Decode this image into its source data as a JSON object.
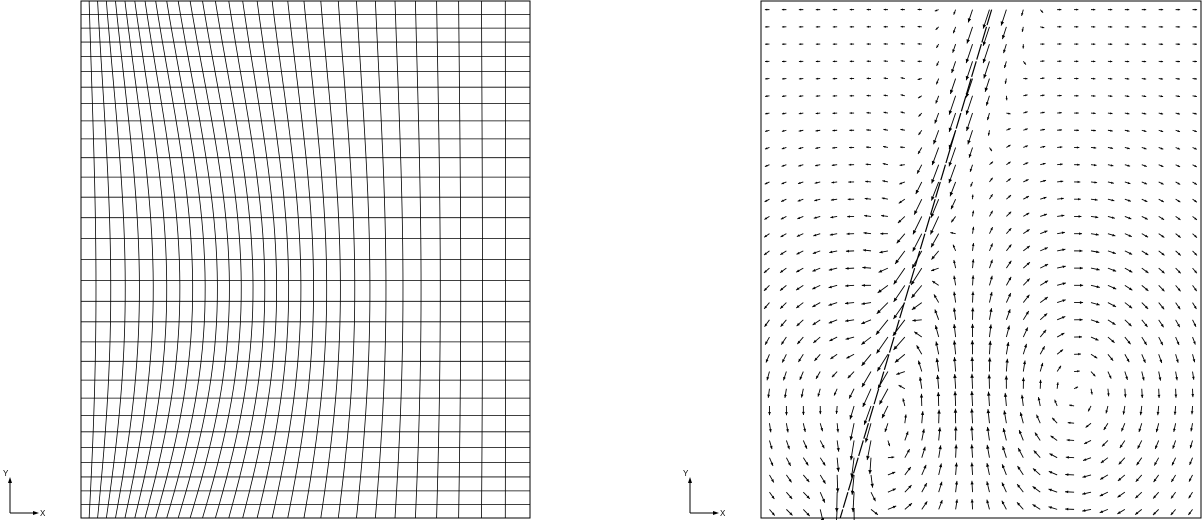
{
  "mesh_plot": {
    "grid_lines_x": 30,
    "grid_lines_y": 30,
    "triad": {
      "x_label": "X",
      "y_label": "Y"
    }
  },
  "vector_plot": {
    "triad": {
      "x_label": "X",
      "y_label": "Y"
    }
  },
  "colors": {
    "line": "#000000",
    "background": "#ffffff"
  }
}
